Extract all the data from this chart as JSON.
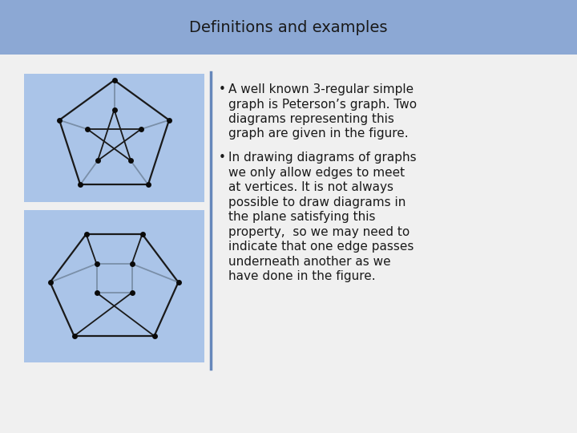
{
  "title": "Definitions and examples",
  "title_bg": "#8ca8d4",
  "slide_bg": "#f0f0f0",
  "graph_bg": "#aac4e8",
  "bullet1_line1": "A well known 3-regular simple",
  "bullet1_line2": "graph is Peterson’s graph. Two",
  "bullet1_line3": "diagrams representing this",
  "bullet1_line4": "graph are given in the figure.",
  "bullet2_line1": "In drawing diagrams of graphs",
  "bullet2_line2": "we only allow edges to meet",
  "bullet2_line3": "at vertices. It is not always",
  "bullet2_line4": "possible to draw diagrams in",
  "bullet2_line5": "the plane satisfying this",
  "bullet2_line6": "property,  so we may need to",
  "bullet2_line7": "indicate that one edge passes",
  "bullet2_line8": "underneath another as we",
  "bullet2_line9": "have done in the figure.",
  "node_color": "#0a0a0a",
  "edge_color": "#1a1a1a",
  "edge_gray": "#7a8fa8",
  "divider_color": "#6688bb",
  "text_color": "#1a1a1a",
  "title_font_size": 14,
  "bullet_font_size": 11
}
